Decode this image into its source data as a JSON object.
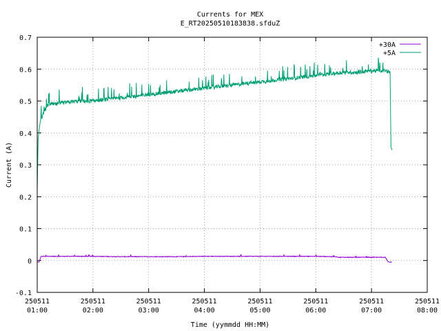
{
  "chart_data": {
    "type": "line",
    "title": "Currents for MEX",
    "subtitle": "E_RT20250510183838.sfduZ",
    "xlabel": "Time (yymmdd HH:MM)",
    "ylabel": "Current (A)",
    "xlim": [
      "2025-05-11 01:00",
      "2025-05-11 08:00"
    ],
    "ylim": [
      -0.1,
      0.7
    ],
    "y_ticks": [
      -0.1,
      0,
      0.1,
      0.2,
      0.3,
      0.4,
      0.5,
      0.6,
      0.7
    ],
    "y_tick_labels": [
      "-0.1",
      "0",
      "0.1",
      "0.2",
      "0.3",
      "0.4",
      "0.5",
      "0.6",
      "0.7"
    ],
    "x_ticks": [
      {
        "date": "250511",
        "time": "01:00",
        "hour": 1
      },
      {
        "date": "250511",
        "time": "02:00",
        "hour": 2
      },
      {
        "date": "250511",
        "time": "03:00",
        "hour": 3
      },
      {
        "date": "250511",
        "time": "04:00",
        "hour": 4
      },
      {
        "date": "250511",
        "time": "05:00",
        "hour": 5
      },
      {
        "date": "250511",
        "time": "06:00",
        "hour": 6
      },
      {
        "date": "250511",
        "time": "07:00",
        "hour": 7
      },
      {
        "date": "250511",
        "time": "08:00",
        "hour": 8
      }
    ],
    "grid": true,
    "legend_position": "top-right",
    "series": [
      {
        "name": "+30A",
        "color": "#9400d3",
        "x": [
          "01:00",
          "01:02",
          "01:04",
          "01:06",
          "01:30",
          "02:00",
          "02:30",
          "03:00",
          "03:30",
          "04:00",
          "04:30",
          "05:00",
          "05:30",
          "06:00",
          "06:20",
          "06:25",
          "06:30",
          "07:00",
          "07:15",
          "07:18",
          "07:22"
        ],
        "y": [
          -0.005,
          -0.005,
          0.012,
          0.013,
          0.013,
          0.013,
          0.012,
          0.012,
          0.012,
          0.013,
          0.013,
          0.013,
          0.013,
          0.013,
          0.012,
          0.01,
          0.01,
          0.01,
          0.01,
          -0.005,
          -0.005
        ]
      },
      {
        "name": "+5A",
        "color": "#009e73",
        "x": [
          "01:00",
          "01:01",
          "01:02",
          "01:03",
          "01:05",
          "01:08",
          "01:12",
          "01:15",
          "01:20",
          "01:30",
          "01:45",
          "02:00",
          "02:15",
          "02:30",
          "02:45",
          "03:00",
          "03:15",
          "03:30",
          "03:45",
          "04:00",
          "04:15",
          "04:30",
          "04:45",
          "05:00",
          "05:15",
          "05:30",
          "05:45",
          "06:00",
          "06:15",
          "06:30",
          "06:45",
          "07:00",
          "07:15",
          "07:20",
          "07:21",
          "07:22"
        ],
        "y": [
          0.22,
          0.38,
          0.41,
          0.43,
          0.45,
          0.47,
          0.49,
          0.49,
          0.49,
          0.495,
          0.5,
          0.5,
          0.505,
          0.51,
          0.515,
          0.52,
          0.525,
          0.53,
          0.535,
          0.54,
          0.545,
          0.55,
          0.555,
          0.56,
          0.565,
          0.57,
          0.575,
          0.58,
          0.585,
          0.59,
          0.59,
          0.595,
          0.595,
          0.59,
          0.35,
          0.35
        ]
      }
    ]
  }
}
